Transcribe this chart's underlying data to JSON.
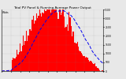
{
  "title": "Total PV Panel & Running Average Power Output",
  "bg_color": "#e8e8e8",
  "plot_bg_color": "#e8e8e8",
  "bar_color": "#ff0000",
  "line_color": "#0000ee",
  "grid_color": "#888888",
  "num_bars": 100,
  "peak_value": 3200,
  "ylim": [
    0,
    3500
  ],
  "yticks": [
    0,
    500,
    1000,
    1500,
    2000,
    2500,
    3000,
    3500
  ],
  "title_fontsize": 3.0,
  "tick_fontsize": 2.2,
  "line_width": 0.7
}
